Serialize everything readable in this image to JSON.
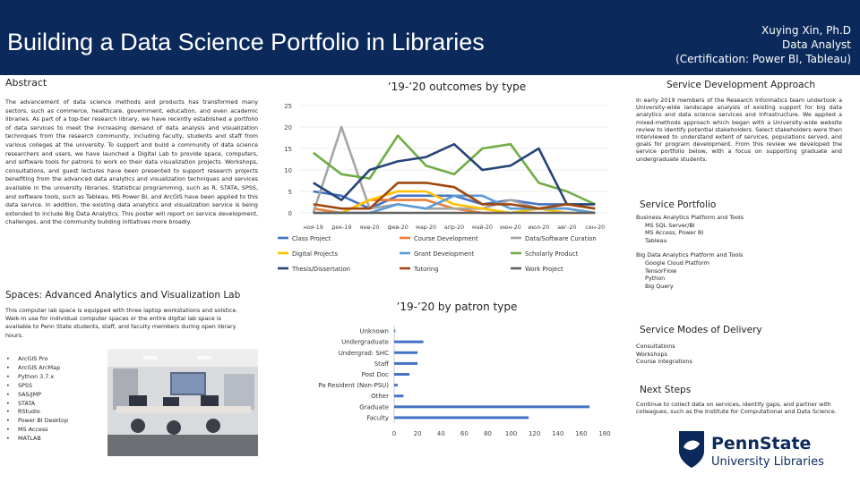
{
  "header": {
    "title": "Building a Data Science Portfolio in Libraries",
    "author_name": "Xuying Xin, Ph.D",
    "author_role": "Data Analyst",
    "author_cred": "(Certification: Power BI, Tableau)"
  },
  "abstract": {
    "heading": "Abstract",
    "body": "The advancement of data science methods and products has transformed many sectors, such as commerce, healthcare, government, education, and even academic libraries. As part of a top-tier research library, we have recently established a portfolio of data services to meet the increasing demand of data analysis and visualization techniques from the research community, including faculty, students and staff from various colleges at the university. To support and build a community of data science researchers and users, we have launched a Digital Lab to provide space, computers, and software tools for patrons to work on their data visualization projects. Workshops, consultations, and guest lectures have been presented to support research projects benefiting from the advanced data analytics and visualization techniques and services available in the university libraries. Statistical programming, such as R, STATA, SPSS, and software tools, such as Tableau, MS Power BI, and ArcGIS have been applied to this data service. In addition, the existing data analytics and visualization service is being extended to include Big Data Analytics. This poster will report on service development, challenges, and the community building initiatives more broadly."
  },
  "spaces": {
    "heading": "Spaces: Advanced Analytics and Visualization Lab",
    "body": "This computer lab space is equipped with three laptop workstations and solstice. Walk-in use for individual computer spaces or the entire digital lab space is available to Penn State students, staff, and faculty members during open library hours.",
    "software": [
      "ArcGIS Pro",
      "ArcGIS ArcMap",
      "Python 3.7.x",
      "SPSS",
      "SAS/JMP",
      "STATA",
      "RStudio",
      "Power BI Desktop",
      "MS Access",
      "MATLAB"
    ]
  },
  "chart1": {
    "title": "’19-’20 outcomes by type"
  },
  "chart2": {
    "title": "’19-’20 by patron type"
  },
  "chart_data": [
    {
      "type": "line",
      "title": "’19-’20 outcomes by type",
      "categories": [
        "ноя-19",
        "дек-19",
        "янв-20",
        "фев-20",
        "мар-20",
        "апр-20",
        "май-20",
        "июн-20",
        "июл-20",
        "авг-20",
        "сен-20"
      ],
      "ylim": [
        0,
        25
      ],
      "yticks": [
        0,
        5,
        10,
        15,
        20,
        25
      ],
      "legend_position": "bottom",
      "series": [
        {
          "name": "Class Project",
          "color": "#4472c4",
          "values": [
            5,
            4,
            1,
            4,
            4,
            4,
            2,
            3,
            2,
            2,
            1
          ]
        },
        {
          "name": "Course Development",
          "color": "#ed7d31",
          "values": [
            1,
            0,
            3,
            3,
            3,
            1,
            0,
            0,
            1,
            1,
            0
          ]
        },
        {
          "name": "Data/Software Curation",
          "color": "#a5a5a5",
          "values": [
            0,
            20,
            1,
            2,
            1,
            1,
            1,
            3,
            1,
            1,
            0
          ]
        },
        {
          "name": "Digital Projects",
          "color": "#ffc000",
          "values": [
            0,
            0,
            3,
            5,
            5,
            2,
            1,
            0,
            1,
            0,
            0
          ]
        },
        {
          "name": "Grant Development",
          "color": "#5b9bd5",
          "values": [
            0,
            0,
            0,
            2,
            1,
            4,
            4,
            1,
            1,
            1,
            0
          ]
        },
        {
          "name": "Scholarly Product",
          "color": "#70ad47",
          "values": [
            14,
            9,
            8,
            18,
            11,
            9,
            15,
            16,
            7,
            5,
            2
          ]
        },
        {
          "name": "Thesis/Dissertation",
          "color": "#264478",
          "values": [
            7,
            3,
            10,
            12,
            13,
            16,
            10,
            11,
            15,
            2,
            2
          ]
        },
        {
          "name": "Tutoring",
          "color": "#9e480e",
          "values": [
            2,
            1,
            1,
            7,
            7,
            6,
            2,
            2,
            1,
            2,
            1
          ]
        },
        {
          "name": "Work Project",
          "color": "#636363",
          "values": [
            0,
            0,
            0,
            0,
            0,
            0,
            0,
            0,
            0,
            0,
            0
          ]
        }
      ]
    },
    {
      "type": "bar",
      "orientation": "horizontal",
      "title": "’19-’20 by patron type",
      "categories": [
        "Unknown",
        "Undergraduate",
        "Undergrad: SHC",
        "Staff",
        "Post Doc",
        "Pa Resident (Non-PSU)",
        "Other",
        "Graduate",
        "Faculty"
      ],
      "values": [
        1,
        25,
        20,
        20,
        13,
        3,
        8,
        167,
        115
      ],
      "xlim": [
        0,
        180
      ],
      "xticks": [
        0,
        20,
        40,
        60,
        80,
        100,
        120,
        140,
        160,
        180
      ],
      "color": "#4472c4"
    }
  ],
  "approach": {
    "heading": "Service Development Approach",
    "body": "In early 2019 members of the Research Informatics team undertook a University-wide landscape analysis of existing support for big data analytics and data science services and infrastructure. We applied a mixed-methods approach which began with a University-wide website review to identify potential stakeholders. Select stakeholders were then interviewed to understand extent of services, populations served, and goals for program development. From this review we developed the service portfolio below, with a focus on supporting graduate and undergraduate students."
  },
  "portfolio": {
    "heading": "Service Portfolio",
    "group1_title": "Business Analytics Platform and Tools",
    "group1_items": [
      "MS SQL Server/BI",
      "MS Access, Power BI",
      "Tableau"
    ],
    "group2_title": "Big Data Analytics Platform and Tools",
    "group2_items": [
      "Google Cloud Platform",
      "TensorFlow",
      "Python",
      "Big Query"
    ]
  },
  "modes": {
    "heading": "Service Modes of Delivery",
    "items": [
      "Consultations",
      "Workshops",
      "Course integrations"
    ]
  },
  "next": {
    "heading": "Next Steps",
    "body": "Continue to collect data on services, identify gaps, and partner with colleagues, such as the Institute for Computational and Data Science."
  },
  "logo": {
    "line1": "PennState",
    "line2": "University Libraries",
    "color": "#0b2a5b"
  }
}
